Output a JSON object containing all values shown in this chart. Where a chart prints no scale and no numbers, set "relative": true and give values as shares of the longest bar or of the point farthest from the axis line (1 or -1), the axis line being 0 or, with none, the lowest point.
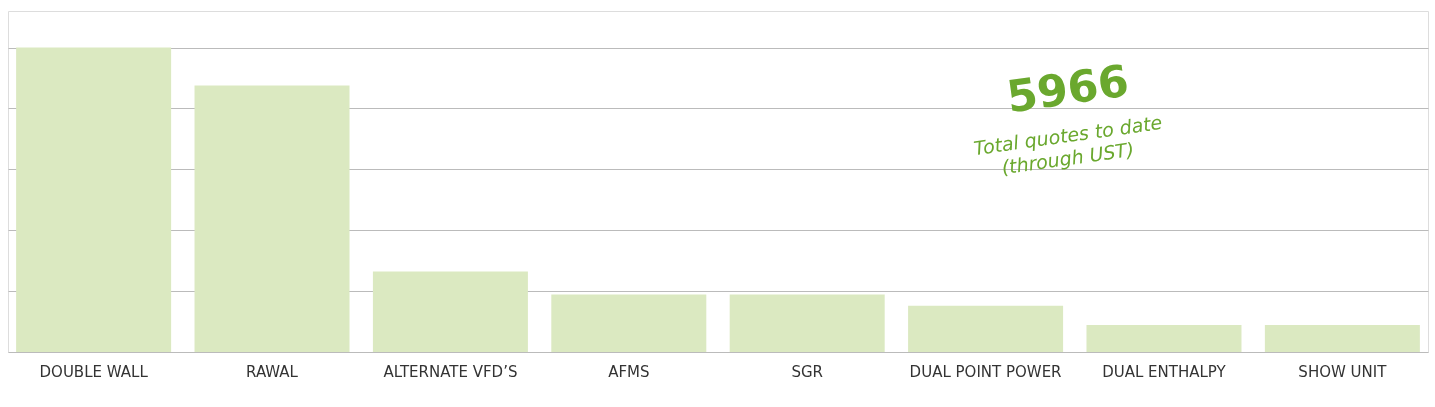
{
  "chart_data": {
    "type": "bar",
    "relative": true,
    "grid": true,
    "color": "#dbe9c1",
    "categories": [
      "DOUBLE WALL",
      "RAWAL",
      "ALTERNATE VFD’S",
      "AFMS",
      "SGR",
      "DUAL POINT POWER",
      "DUAL ENTHALPY",
      "SHOW UNIT"
    ],
    "values": [
      1,
      0.875,
      0.264,
      0.189,
      0.189,
      0.152,
      0.089,
      0.089
    ],
    "annotations": [
      "5966",
      "Total quotes to date",
      "(through UST)"
    ]
  }
}
